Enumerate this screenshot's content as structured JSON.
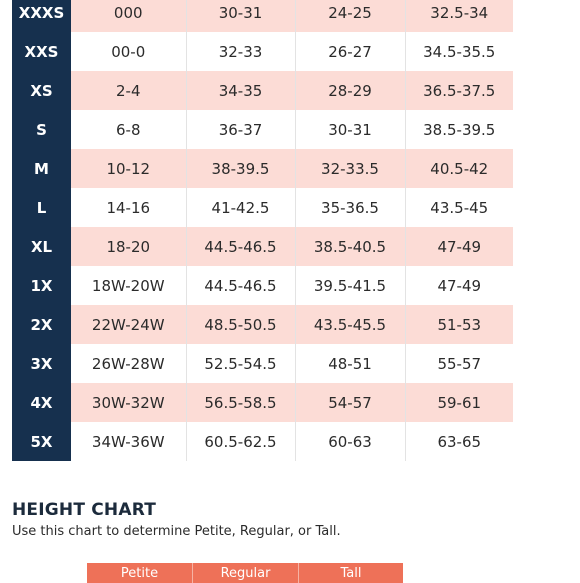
{
  "size_chart": {
    "rows": [
      {
        "size": "XXXS",
        "values": [
          "000",
          "30-31",
          "24-25",
          "32.5-34"
        ]
      },
      {
        "size": "XXS",
        "values": [
          "00-0",
          "32-33",
          "26-27",
          "34.5-35.5"
        ]
      },
      {
        "size": "XS",
        "values": [
          "2-4",
          "34-35",
          "28-29",
          "36.5-37.5"
        ]
      },
      {
        "size": "S",
        "values": [
          "6-8",
          "36-37",
          "30-31",
          "38.5-39.5"
        ]
      },
      {
        "size": "M",
        "values": [
          "10-12",
          "38-39.5",
          "32-33.5",
          "40.5-42"
        ]
      },
      {
        "size": "L",
        "values": [
          "14-16",
          "41-42.5",
          "35-36.5",
          "43.5-45"
        ]
      },
      {
        "size": "XL",
        "values": [
          "18-20",
          "44.5-46.5",
          "38.5-40.5",
          "47-49"
        ]
      },
      {
        "size": "1X",
        "values": [
          "18W-20W",
          "44.5-46.5",
          "39.5-41.5",
          "47-49"
        ]
      },
      {
        "size": "2X",
        "values": [
          "22W-24W",
          "48.5-50.5",
          "43.5-45.5",
          "51-53"
        ]
      },
      {
        "size": "3X",
        "values": [
          "26W-28W",
          "52.5-54.5",
          "48-51",
          "55-57"
        ]
      },
      {
        "size": "4X",
        "values": [
          "30W-32W",
          "56.5-58.5",
          "54-57",
          "59-61"
        ]
      },
      {
        "size": "5X",
        "values": [
          "34W-36W",
          "60.5-62.5",
          "60-63",
          "63-65"
        ]
      }
    ]
  },
  "height_chart": {
    "title": "HEIGHT CHART",
    "description": "Use this chart to determine Petite, Regular, or Tall.",
    "headers": [
      "Petite",
      "Regular",
      "Tall"
    ]
  },
  "colors": {
    "navy": "#16304e",
    "pink_row": "#fcdcd6",
    "coral_header": "#ee7158"
  }
}
